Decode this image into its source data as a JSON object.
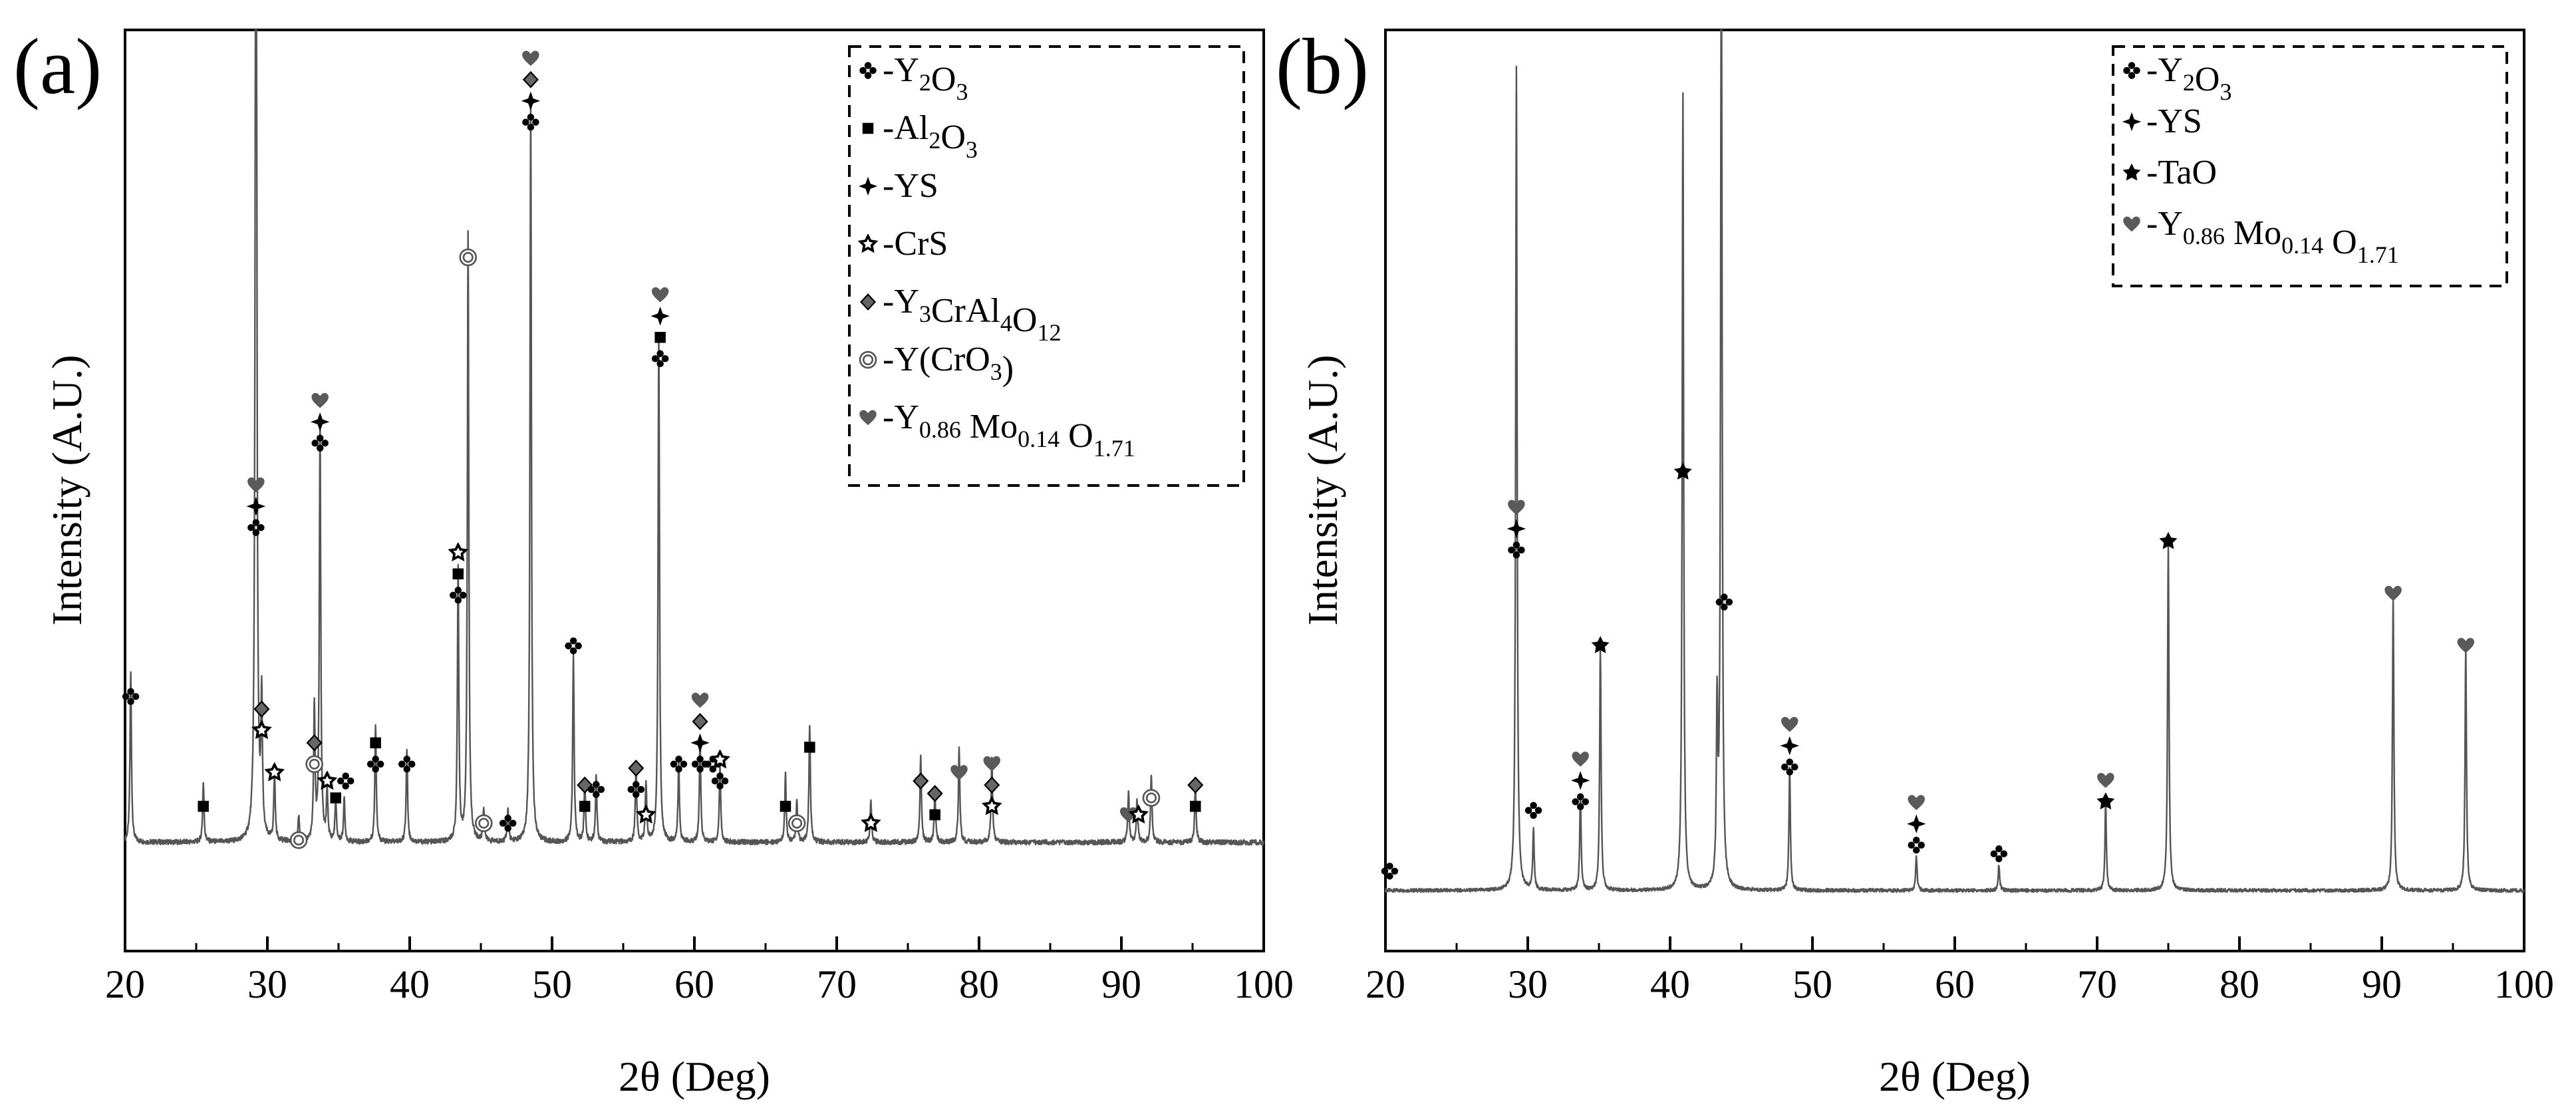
{
  "chart_data": [
    {
      "type": "line",
      "panel": "(a)",
      "xlabel": "2θ (Deg)",
      "ylabel": "Intensity (A.U.)",
      "xlim": [
        20,
        100
      ],
      "ylim": [
        0,
        100
      ],
      "xticks": [
        20,
        30,
        40,
        50,
        60,
        70,
        80,
        90,
        100
      ],
      "baseline": 5,
      "noise": 0.6,
      "peaks": [
        [
          20.4,
          20
        ],
        [
          25.5,
          7
        ],
        [
          29.2,
          160
        ],
        [
          29.6,
          16
        ],
        [
          30.5,
          8
        ],
        [
          32.2,
          3
        ],
        [
          33.3,
          16
        ],
        [
          33.7,
          50
        ],
        [
          34.2,
          6
        ],
        [
          34.8,
          5
        ],
        [
          35.4,
          5
        ],
        [
          37.6,
          14
        ],
        [
          39.8,
          11
        ],
        [
          43.4,
          32
        ],
        [
          44.1,
          72
        ],
        [
          45.2,
          4
        ],
        [
          46.9,
          4
        ],
        [
          48.5,
          88
        ],
        [
          51.5,
          22
        ],
        [
          52.3,
          7
        ],
        [
          53.1,
          8
        ],
        [
          55.9,
          9
        ],
        [
          56.6,
          7
        ],
        [
          57.5,
          60
        ],
        [
          58.9,
          9
        ],
        [
          60.4,
          12
        ],
        [
          61.8,
          9
        ],
        [
          66.4,
          8
        ],
        [
          67.2,
          5
        ],
        [
          68.1,
          14
        ],
        [
          72.4,
          5
        ],
        [
          75.9,
          10
        ],
        [
          76.9,
          6
        ],
        [
          78.6,
          11
        ],
        [
          80.9,
          10
        ],
        [
          90.5,
          6
        ],
        [
          91.1,
          5
        ],
        [
          92.1,
          8
        ],
        [
          95.2,
          7
        ]
      ],
      "legend": [
        {
          "icon": "cross",
          "label": "-Y",
          "sub1": "2",
          "mid": "O",
          "sub2": "3"
        },
        {
          "icon": "square",
          "label": "-Al",
          "sub1": "2",
          "mid": "O",
          "sub2": "3"
        },
        {
          "icon": "star4",
          "label": "-YS"
        },
        {
          "icon": "star5open",
          "label": "-CrS"
        },
        {
          "icon": "diamond",
          "label": "-Y",
          "sub1": "3",
          "mid": "CrAl",
          "sub2": "4",
          "mid2": "O",
          "sub3": "12"
        },
        {
          "icon": "ring",
          "label": "-Y(CrO",
          "sub1": "3",
          "mid": ")"
        },
        {
          "icon": "heart",
          "label": "-Y",
          "sub1": "0.86",
          "mid": " Mo",
          "sub2": "0.14",
          "mid2": " O",
          "sub3": "1.71"
        }
      ],
      "markers": [
        {
          "x": 20.4,
          "y": 21,
          "icons": [
            "cross"
          ]
        },
        {
          "x": 25.5,
          "y": 8,
          "icons": [
            "square"
          ]
        },
        {
          "x": 29.2,
          "y": 41,
          "icons": [
            "cross",
            "star4",
            "heart"
          ]
        },
        {
          "x": 29.6,
          "y": 17,
          "icons": [
            "star5open",
            "diamond"
          ]
        },
        {
          "x": 30.5,
          "y": 12,
          "icons": [
            "star5open"
          ]
        },
        {
          "x": 32.2,
          "y": 4,
          "icons": [
            "ring"
          ]
        },
        {
          "x": 33.3,
          "y": 13,
          "icons": [
            "ring",
            "diamond"
          ]
        },
        {
          "x": 33.7,
          "y": 51,
          "icons": [
            "cross",
            "star4",
            "heart"
          ]
        },
        {
          "x": 34.2,
          "y": 11,
          "icons": [
            "star5open"
          ]
        },
        {
          "x": 34.8,
          "y": 9,
          "icons": [
            "square"
          ]
        },
        {
          "x": 35.5,
          "y": 11,
          "icons": [
            "cross"
          ]
        },
        {
          "x": 37.6,
          "y": 13,
          "icons": [
            "cross",
            "square"
          ]
        },
        {
          "x": 39.8,
          "y": 13,
          "icons": [
            "cross"
          ]
        },
        {
          "x": 43.4,
          "y": 33,
          "icons": [
            "cross",
            "square",
            "star5open"
          ]
        },
        {
          "x": 44.1,
          "y": 73,
          "icons": [
            "ring"
          ]
        },
        {
          "x": 45.2,
          "y": 6,
          "icons": [
            "ring"
          ]
        },
        {
          "x": 46.9,
          "y": 6,
          "icons": [
            "cross"
          ]
        },
        {
          "x": 48.5,
          "y": 89,
          "icons": [
            "cross",
            "star4",
            "diamond",
            "heart"
          ]
        },
        {
          "x": 51.5,
          "y": 27,
          "icons": [
            "cross"
          ]
        },
        {
          "x": 52.3,
          "y": 8,
          "icons": [
            "square",
            "diamond"
          ]
        },
        {
          "x": 53.1,
          "y": 10,
          "icons": [
            "cross"
          ]
        },
        {
          "x": 55.9,
          "y": 10,
          "icons": [
            "cross",
            "diamond"
          ]
        },
        {
          "x": 56.6,
          "y": 7,
          "icons": [
            "star5open"
          ]
        },
        {
          "x": 57.6,
          "y": 61,
          "icons": [
            "cross",
            "square",
            "star4",
            "heart"
          ]
        },
        {
          "x": 58.9,
          "y": 13,
          "icons": [
            "cross"
          ]
        },
        {
          "x": 60.4,
          "y": 13,
          "icons": [
            "cross",
            "star4",
            "diamond",
            "heart"
          ]
        },
        {
          "x": 61.3,
          "y": 13,
          "icons": [
            "cross"
          ]
        },
        {
          "x": 61.8,
          "y": 11,
          "icons": [
            "cross",
            "star5open"
          ]
        },
        {
          "x": 66.4,
          "y": 8,
          "icons": [
            "square"
          ]
        },
        {
          "x": 67.2,
          "y": 6,
          "icons": [
            "ring"
          ]
        },
        {
          "x": 68.1,
          "y": 15,
          "icons": [
            "square"
          ]
        },
        {
          "x": 72.4,
          "y": 6,
          "icons": [
            "star5open"
          ]
        },
        {
          "x": 75.9,
          "y": 11,
          "icons": [
            "diamond"
          ]
        },
        {
          "x": 76.9,
          "y": 7,
          "icons": [
            "square",
            "diamond"
          ]
        },
        {
          "x": 78.6,
          "y": 12,
          "icons": [
            "heart"
          ]
        },
        {
          "x": 80.9,
          "y": 8,
          "icons": [
            "star5open",
            "diamond",
            "heart"
          ]
        },
        {
          "x": 90.5,
          "y": 7,
          "icons": [
            "heart"
          ]
        },
        {
          "x": 91.2,
          "y": 7,
          "icons": [
            "star5open"
          ]
        },
        {
          "x": 92.1,
          "y": 9,
          "icons": [
            "ring"
          ]
        },
        {
          "x": 95.2,
          "y": 8,
          "icons": [
            "square",
            "diamond"
          ]
        }
      ]
    },
    {
      "type": "line",
      "panel": "(b)",
      "xlabel": "2θ (Deg)",
      "ylabel": "Intensity (A.U.)",
      "xlim": [
        20,
        100
      ],
      "ylim": [
        0,
        100
      ],
      "xticks": [
        20,
        30,
        40,
        50,
        60,
        70,
        80,
        90,
        100
      ],
      "baseline": 2,
      "noise": 0.4,
      "peaks": [
        [
          29.2,
          95
        ],
        [
          30.4,
          7
        ],
        [
          33.7,
          11
        ],
        [
          35.1,
          28
        ],
        [
          40.9,
          92
        ],
        [
          43.3,
          20
        ],
        [
          43.6,
          120
        ],
        [
          48.4,
          14
        ],
        [
          57.3,
          4
        ],
        [
          63.1,
          3
        ],
        [
          70.6,
          10
        ],
        [
          75.0,
          40
        ],
        [
          90.8,
          34
        ],
        [
          95.9,
          28
        ]
      ],
      "legend": [
        {
          "icon": "cross",
          "label": "-Y",
          "sub1": "2",
          "mid": "O",
          "sub2": "3"
        },
        {
          "icon": "star4",
          "label": "-YS"
        },
        {
          "icon": "star5",
          "label": "-TaO"
        },
        {
          "icon": "heart",
          "label": "-Y",
          "sub1": "0.86",
          "mid": " Mo",
          "sub2": "0.14",
          "mid2": " O",
          "sub3": "1.71"
        }
      ],
      "markers": [
        {
          "x": 20.3,
          "y": 3,
          "icons": [
            "cross"
          ]
        },
        {
          "x": 29.2,
          "y": 40,
          "icons": [
            "cross",
            "star4",
            "heart"
          ]
        },
        {
          "x": 30.4,
          "y": 10,
          "icons": [
            "cross"
          ]
        },
        {
          "x": 33.7,
          "y": 11,
          "icons": [
            "cross",
            "star4",
            "heart"
          ]
        },
        {
          "x": 35.1,
          "y": 29,
          "icons": [
            "star5"
          ]
        },
        {
          "x": 40.9,
          "y": 49,
          "icons": [
            "star5"
          ]
        },
        {
          "x": 43.8,
          "y": 34,
          "icons": [
            "cross"
          ]
        },
        {
          "x": 48.4,
          "y": 15,
          "icons": [
            "cross",
            "star4",
            "heart"
          ]
        },
        {
          "x": 57.3,
          "y": 6,
          "icons": [
            "cross",
            "star4",
            "heart"
          ]
        },
        {
          "x": 63.1,
          "y": 5,
          "icons": [
            "cross"
          ]
        },
        {
          "x": 70.6,
          "y": 11,
          "icons": [
            "star5",
            "heart"
          ]
        },
        {
          "x": 75.0,
          "y": 41,
          "icons": [
            "star5"
          ]
        },
        {
          "x": 90.8,
          "y": 35,
          "icons": [
            "heart"
          ]
        },
        {
          "x": 95.9,
          "y": 29,
          "icons": [
            "heart"
          ]
        }
      ]
    }
  ],
  "colors": {
    "line": "#555555",
    "axis": "#000000",
    "heart": "#5a5a5a",
    "diamond": "#666666",
    "background": "#ffffff"
  }
}
